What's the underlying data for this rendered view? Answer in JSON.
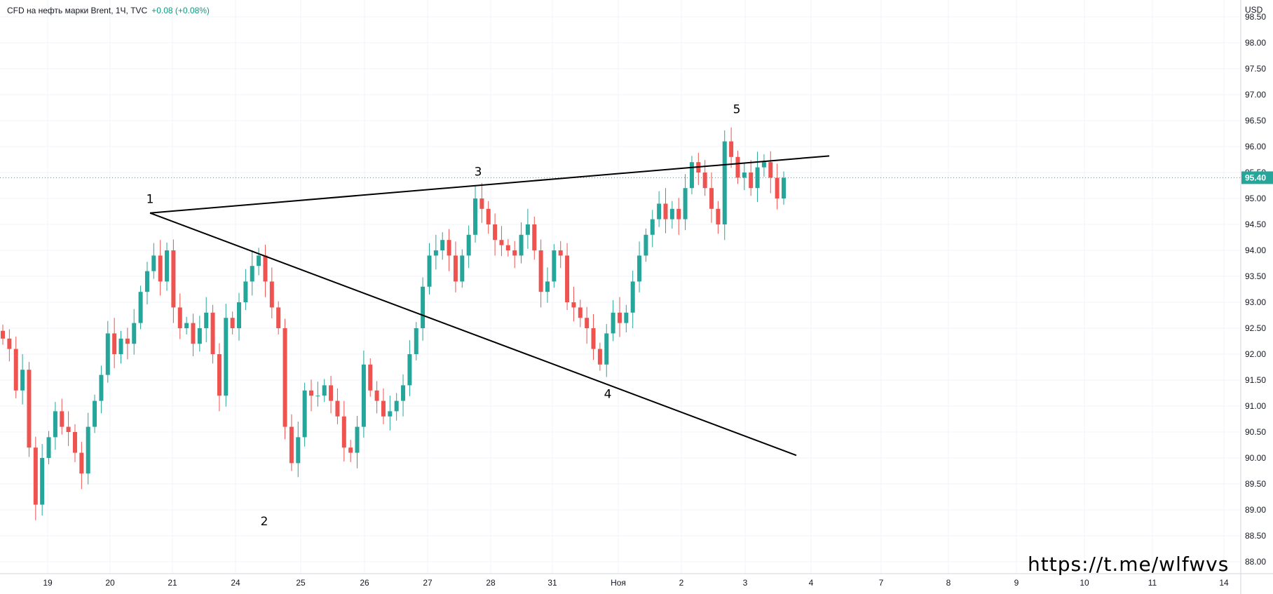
{
  "header": {
    "symbol_line": "CFD на нефть марки Brent, 1Ч, TVC",
    "change": "+0.08 (+0.08%)"
  },
  "watermark": "https://t.me/wlfwvs",
  "colors": {
    "up": "#26a69a",
    "down": "#ef5350",
    "line": "#000000",
    "price_tag": "#26a69a"
  },
  "chart_data": {
    "type": "candlestick",
    "currency_label": "USD",
    "current_price": 95.4,
    "current_price_label": "95.40",
    "ylim": [
      87.9,
      99.0
    ],
    "y_ticks": [
      "88.00",
      "88.50",
      "89.00",
      "89.50",
      "90.00",
      "90.50",
      "91.00",
      "91.50",
      "92.00",
      "92.50",
      "93.00",
      "93.50",
      "94.00",
      "94.50",
      "95.00",
      "95.50",
      "96.00",
      "96.50",
      "97.00",
      "97.50",
      "98.00",
      "98.50"
    ],
    "x_ticks": [
      "19",
      "20",
      "21",
      "24",
      "25",
      "26",
      "27",
      "28",
      "31",
      "Ноя",
      "2",
      "3",
      "4",
      "7",
      "8",
      "9",
      "10",
      "11",
      "14"
    ],
    "wave_points": [
      {
        "label": "1",
        "date": "20",
        "price": 94.72
      },
      {
        "label": "2",
        "date": "24",
        "price": 89.0
      },
      {
        "label": "3",
        "date": "28",
        "price": 95.25
      },
      {
        "label": "4",
        "date": "Ноя",
        "price": 91.45
      },
      {
        "label": "5",
        "date": "3",
        "price": 96.4
      }
    ],
    "trendlines": [
      {
        "name": "upper",
        "from": {
          "date": "20",
          "price": 94.72
        },
        "to": {
          "date": "4",
          "price": 95.82
        }
      },
      {
        "name": "lower",
        "from": {
          "date": "20",
          "price": 94.72
        },
        "to": {
          "date": "4",
          "price": 90.05
        }
      }
    ],
    "closes": [
      92.3,
      92.1,
      91.3,
      91.7,
      90.2,
      89.1,
      90.0,
      90.4,
      90.9,
      90.6,
      90.5,
      90.1,
      89.7,
      90.6,
      91.1,
      91.6,
      92.4,
      92.0,
      92.3,
      92.2,
      92.6,
      93.2,
      93.6,
      93.9,
      93.4,
      94.0,
      92.9,
      92.5,
      92.6,
      92.2,
      92.5,
      92.8,
      92.0,
      91.2,
      92.7,
      92.5,
      93.0,
      93.4,
      93.7,
      93.9,
      93.4,
      92.9,
      92.5,
      90.6,
      89.9,
      90.4,
      91.3,
      91.2,
      91.2,
      91.4,
      91.1,
      90.8,
      90.2,
      90.1,
      90.6,
      91.8,
      91.3,
      91.1,
      90.8,
      90.9,
      91.1,
      91.4,
      92.0,
      92.5,
      93.3,
      93.9,
      94.0,
      94.2,
      93.9,
      93.4,
      93.9,
      94.3,
      95.0,
      94.8,
      94.5,
      94.2,
      94.1,
      94.0,
      93.9,
      94.3,
      94.5,
      94.0,
      93.2,
      93.4,
      94.0,
      93.9,
      93.0,
      92.9,
      92.7,
      92.5,
      92.1,
      91.8,
      92.4,
      92.8,
      92.6,
      92.8,
      93.4,
      93.9,
      94.3,
      94.6,
      94.9,
      94.6,
      94.8,
      94.6,
      95.2,
      95.7,
      95.5,
      95.2,
      94.8,
      94.5,
      96.1,
      95.8,
      95.4,
      95.5,
      95.2,
      95.6,
      95.7,
      95.4,
      95.0,
      95.4
    ]
  }
}
